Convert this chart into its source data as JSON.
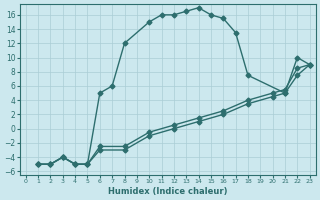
{
  "xlabel": "Humidex (Indice chaleur)",
  "bg_color": "#cce8ee",
  "line_color": "#2d6e6e",
  "marker": "D",
  "markersize": 2.5,
  "linewidth": 1.0,
  "xlim": [
    -0.5,
    23.5
  ],
  "ylim": [
    -6.5,
    17.5
  ],
  "xticks": [
    0,
    1,
    2,
    3,
    4,
    5,
    6,
    7,
    8,
    9,
    10,
    11,
    12,
    13,
    14,
    15,
    16,
    17,
    18,
    19,
    20,
    21,
    22,
    23
  ],
  "yticks": [
    -6,
    -4,
    -2,
    0,
    2,
    4,
    6,
    8,
    10,
    12,
    14,
    16
  ],
  "curve1_x": [
    1,
    2,
    3,
    4,
    5,
    6,
    7,
    8,
    10,
    11,
    12,
    13,
    14,
    15,
    16,
    17,
    18,
    21,
    22,
    23
  ],
  "curve1_y": [
    -5,
    -5,
    -4,
    -5,
    -5,
    5,
    6,
    12,
    15,
    16,
    16,
    16.5,
    17,
    16,
    15.5,
    13.5,
    7.5,
    5,
    10,
    9
  ],
  "curve2_x": [
    1,
    2,
    3,
    4,
    5,
    6,
    8,
    10,
    12,
    14,
    16,
    18,
    20,
    21,
    22,
    23
  ],
  "curve2_y": [
    -5,
    -5,
    -4,
    -5,
    -5,
    -3,
    -3,
    -1,
    0,
    1,
    2,
    3.5,
    4.5,
    5,
    7.5,
    9
  ],
  "curve3_x": [
    1,
    2,
    3,
    4,
    5,
    6,
    8,
    10,
    12,
    14,
    16,
    18,
    20,
    21,
    22,
    23
  ],
  "curve3_y": [
    -5,
    -5,
    -4,
    -5,
    -5,
    -2.5,
    -2.5,
    -0.5,
    0.5,
    1.5,
    2.5,
    4,
    5,
    5.5,
    8.5,
    9
  ],
  "grid_color": "#aacdd5",
  "grid_lw": 0.5,
  "xlabel_fontsize": 6.0,
  "tick_fontsize_x": 4.5,
  "tick_fontsize_y": 5.5
}
